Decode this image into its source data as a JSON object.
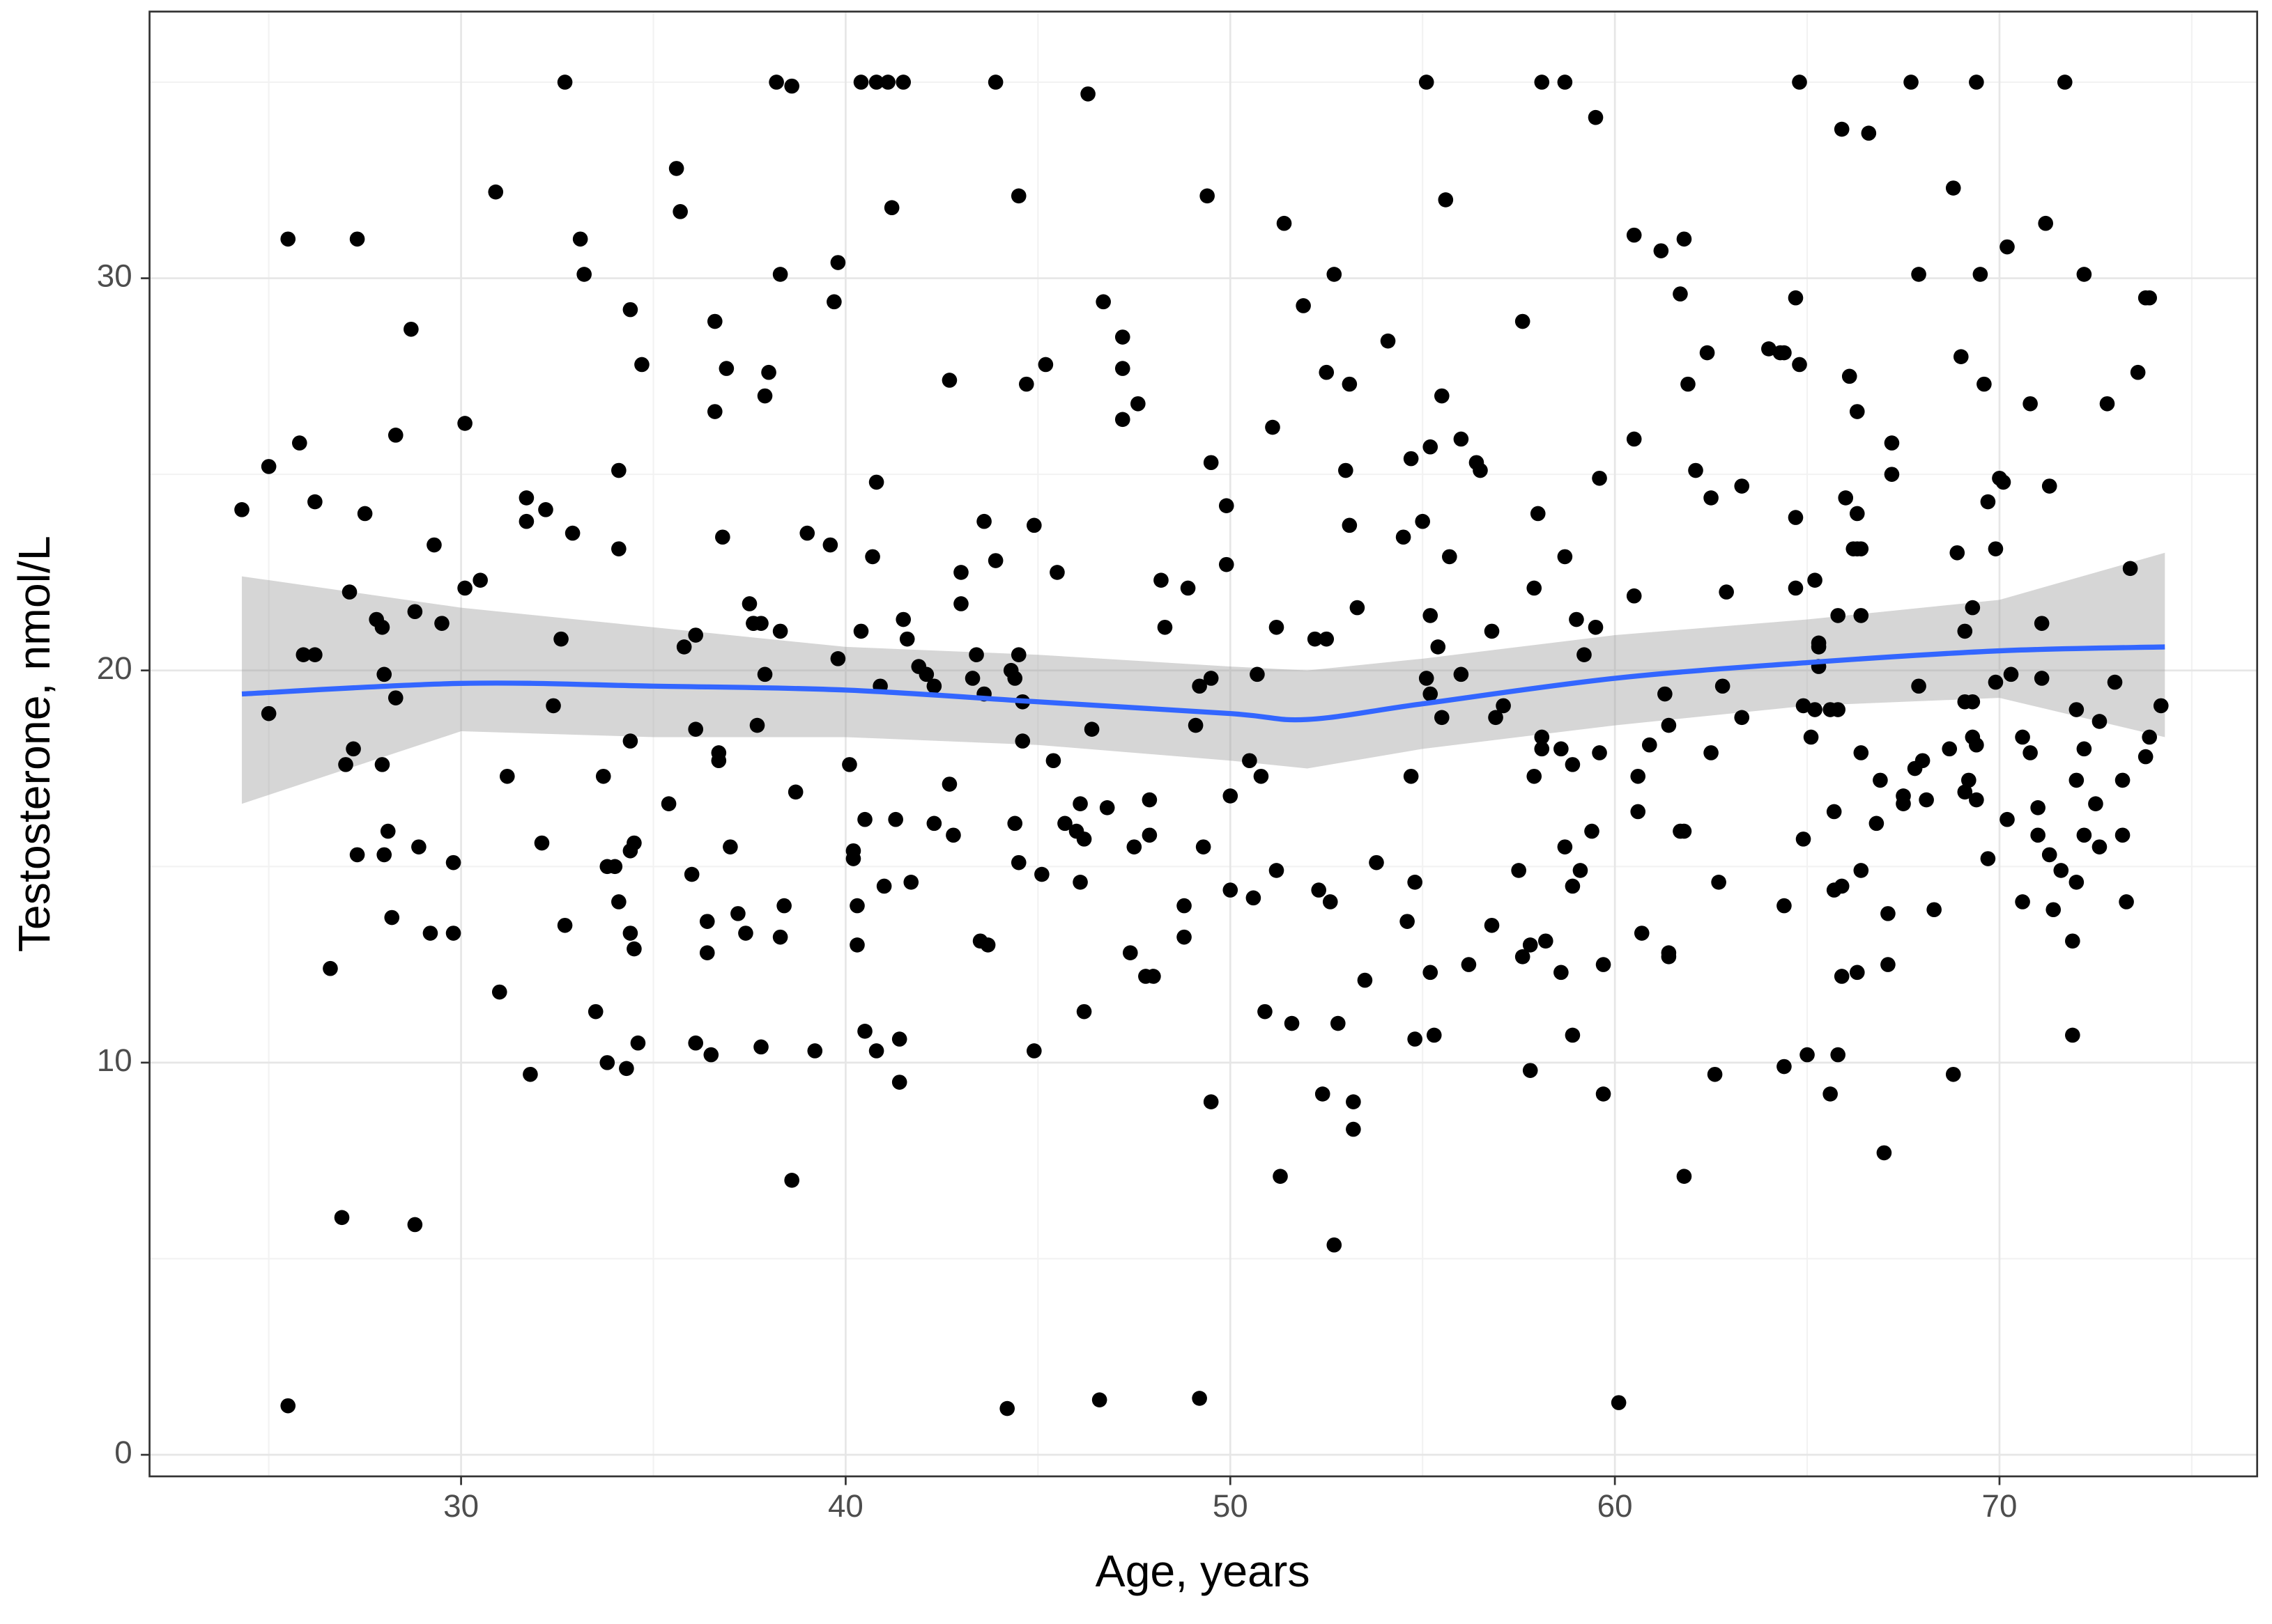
{
  "chart_data": {
    "type": "scatter",
    "x_label": "Age, years",
    "y_label": "Testosterone, nmol/L",
    "xlim": [
      21.9,
      76.7
    ],
    "ylim": [
      -0.55,
      36.8
    ],
    "xticks": [
      30,
      40,
      50,
      60,
      70
    ],
    "yticks": [
      0,
      10,
      20,
      30
    ],
    "x_minor_ticks": [
      25,
      35,
      45,
      55,
      65,
      75
    ],
    "y_minor_ticks": [
      5,
      15,
      25,
      35
    ],
    "grid": true,
    "points": {
      "color": "#000000",
      "x": [
        24.3,
        25.0,
        25.0,
        25.5,
        25.5,
        25.8,
        25.9,
        26.2,
        26.2,
        26.6,
        26.9,
        27.0,
        27.1,
        27.2,
        27.3,
        27.3,
        27.5,
        27.8,
        27.95,
        27.95,
        28.0,
        28.0,
        28.1,
        28.2,
        28.3,
        28.3,
        28.7,
        28.8,
        28.8,
        28.9,
        29.2,
        29.3,
        29.5,
        29.8,
        29.8,
        30.1,
        30.1,
        30.5,
        30.9,
        31.0,
        31.2,
        31.7,
        31.7,
        31.8,
        32.1,
        32.2,
        32.4,
        32.6,
        32.7,
        32.7,
        32.9,
        33.1,
        33.2,
        33.5,
        33.7,
        33.8,
        33.8,
        34.0,
        34.1,
        34.1,
        34.1,
        34.3,
        34.4,
        34.4,
        34.4,
        34.4,
        34.5,
        34.5,
        34.6,
        34.7,
        35.4,
        35.6,
        35.7,
        35.8,
        36.0,
        36.1,
        36.1,
        36.1,
        36.4,
        36.4,
        36.5,
        36.6,
        36.6,
        36.7,
        36.7,
        36.8,
        36.9,
        37.0,
        37.2,
        37.4,
        37.5,
        37.6,
        37.6,
        37.7,
        37.8,
        37.8,
        37.9,
        37.9,
        38.0,
        38.2,
        38.3,
        38.3,
        38.3,
        38.4,
        38.6,
        38.6,
        38.7,
        39.0,
        39.2,
        39.6,
        39.8,
        39.8,
        39.7,
        40.1,
        40.2,
        40.2,
        40.3,
        40.3,
        40.4,
        40.4,
        40.5,
        40.5,
        40.7,
        40.8,
        40.8,
        40.8,
        40.9,
        41.0,
        41.1,
        41.2,
        41.3,
        41.4,
        41.4,
        41.5,
        41.5,
        41.6,
        41.7,
        41.9,
        42.1,
        42.3,
        42.3,
        42.7,
        42.7,
        42.8,
        43.0,
        43.0,
        43.3,
        43.4,
        43.5,
        43.6,
        43.6,
        43.7,
        43.9,
        43.9,
        44.2,
        44.3,
        44.4,
        44.4,
        44.5,
        44.5,
        44.5,
        44.6,
        44.6,
        44.7,
        44.9,
        44.9,
        45.1,
        45.2,
        45.4,
        45.5,
        45.7,
        46.0,
        46.1,
        46.1,
        46.2,
        46.2,
        46.3,
        46.4,
        46.6,
        46.7,
        46.8,
        47.2,
        47.2,
        47.2,
        47.4,
        47.5,
        47.6,
        47.8,
        47.9,
        47.9,
        48.0,
        48.2,
        48.3,
        48.8,
        48.8,
        48.9,
        49.1,
        49.2,
        49.2,
        49.3,
        49.4,
        49.5,
        49.5,
        49.5,
        49.9,
        49.9,
        50.0,
        50.0,
        50.5,
        50.6,
        50.7,
        50.8,
        50.9,
        51.1,
        51.2,
        51.2,
        51.3,
        51.4,
        51.6,
        51.9,
        52.2,
        52.3,
        52.4,
        52.5,
        52.5,
        52.6,
        52.7,
        52.7,
        52.8,
        53.0,
        53.1,
        53.1,
        53.2,
        53.2,
        53.3,
        53.5,
        53.8,
        54.1,
        54.5,
        54.6,
        54.7,
        54.7,
        54.8,
        54.8,
        55.0,
        55.1,
        55.1,
        55.2,
        55.2,
        55.2,
        55.2,
        55.3,
        55.4,
        55.5,
        55.5,
        55.6,
        55.7,
        56.0,
        56.0,
        56.2,
        56.4,
        56.5,
        56.8,
        56.8,
        56.9,
        57.1,
        57.5,
        57.6,
        57.6,
        57.8,
        57.8,
        57.9,
        57.9,
        58.0,
        58.1,
        58.1,
        58.1,
        58.2,
        58.6,
        58.6,
        58.7,
        58.7,
        58.7,
        58.9,
        58.9,
        58.9,
        59.0,
        59.1,
        59.2,
        59.4,
        59.5,
        59.5,
        59.6,
        59.6,
        59.7,
        59.7,
        60.1,
        60.5,
        60.5,
        60.5,
        60.6,
        60.6,
        60.7,
        60.9,
        61.2,
        61.3,
        61.4,
        61.4,
        61.4,
        61.7,
        61.7,
        61.8,
        61.8,
        61.8,
        61.9,
        62.1,
        62.4,
        62.5,
        62.5,
        62.6,
        62.7,
        62.8,
        62.9,
        63.3,
        63.3,
        64.0,
        64.3,
        64.4,
        64.4,
        64.4,
        64.7,
        64.7,
        64.8,
        64.7,
        64.8,
        64.9,
        64.9,
        65.0,
        65.1,
        65.2,
        65.2,
        65.3,
        65.3,
        65.3,
        65.6,
        65.6,
        65.7,
        65.7,
        65.8,
        65.8,
        65.8,
        65.9,
        65.9,
        65.9,
        66.0,
        66.1,
        66.2,
        66.3,
        66.3,
        66.3,
        66.3,
        66.4,
        66.4,
        66.4,
        66.4,
        66.6,
        66.8,
        66.9,
        67.0,
        67.1,
        67.1,
        67.2,
        67.2,
        67.5,
        67.5,
        67.7,
        67.8,
        67.9,
        67.9,
        68.0,
        68.1,
        68.3,
        68.7,
        68.8,
        68.8,
        68.9,
        69.0,
        69.1,
        69.1,
        69.1,
        69.2,
        69.3,
        69.3,
        69.3,
        69.4,
        69.4,
        69.4,
        69.5,
        69.6,
        69.7,
        69.7,
        69.9,
        69.9,
        70.0,
        70.1,
        70.2,
        70.2,
        70.3,
        70.6,
        70.6,
        70.8,
        70.8,
        71.0,
        71.0,
        71.1,
        71.1,
        71.2,
        71.3,
        71.3,
        71.4,
        71.6,
        71.7,
        71.9,
        71.9,
        72.0,
        72.0,
        72.0,
        72.2,
        72.2,
        72.2,
        72.5,
        72.6,
        72.6,
        72.8,
        73.0,
        73.2,
        73.2,
        73.3,
        73.4,
        73.6,
        73.8,
        73.8,
        73.9,
        73.9,
        74.2
      ],
      "y": [
        24.1,
        25.2,
        18.9,
        31.0,
        1.25,
        25.8,
        20.4,
        24.3,
        20.4,
        12.4,
        6.05,
        17.6,
        22.0,
        18.0,
        31.0,
        15.3,
        24.0,
        21.3,
        21.1,
        17.6,
        15.3,
        19.9,
        15.9,
        13.7,
        19.3,
        26.0,
        28.7,
        5.87,
        21.5,
        15.5,
        13.3,
        23.2,
        21.2,
        13.3,
        15.1,
        22.1,
        26.3,
        22.3,
        32.2,
        11.8,
        17.3,
        24.4,
        23.8,
        9.7,
        15.6,
        24.1,
        19.1,
        20.8,
        35,
        13.5,
        23.5,
        31.0,
        30.1,
        11.3,
        17.3,
        10.0,
        15.0,
        15.0,
        23.1,
        25.1,
        14.1,
        9.85,
        18.2,
        29.2,
        15.4,
        13.3,
        15.6,
        12.9,
        10.5,
        27.8,
        16.6,
        32.8,
        31.7,
        20.6,
        14.8,
        10.5,
        20.9,
        18.5,
        13.6,
        12.8,
        10.2,
        26.6,
        28.9,
        17.7,
        17.9,
        23.4,
        27.7,
        15.5,
        13.8,
        13.3,
        21.7,
        21.2,
        21.2,
        18.6,
        21.2,
        10.4,
        19.9,
        27.0,
        27.6,
        35,
        30.1,
        13.2,
        21.0,
        14.0,
        34.9,
        7.0,
        16.9,
        23.5,
        10.3,
        23.2,
        20.3,
        30.4,
        29.4,
        17.6,
        15.4,
        15.2,
        14.0,
        13.0,
        21.0,
        35,
        10.8,
        16.2,
        22.9,
        24.8,
        10.3,
        35,
        19.6,
        14.5,
        35,
        31.8,
        16.2,
        10.6,
        9.5,
        35,
        21.3,
        20.8,
        14.6,
        20.1,
        19.9,
        19.6,
        16.1,
        27.4,
        17.1,
        15.8,
        22.5,
        21.7,
        19.8,
        20.4,
        13.1,
        23.8,
        19.4,
        13.0,
        35,
        22.8,
        1.18,
        20.0,
        16.1,
        19.8,
        15.1,
        32.1,
        20.4,
        18.2,
        19.2,
        27.3,
        23.7,
        10.3,
        14.8,
        27.8,
        17.7,
        22.5,
        16.1,
        15.9,
        16.6,
        14.6,
        11.3,
        15.7,
        34.7,
        18.5,
        1.4,
        29.4,
        16.5,
        28.5,
        27.7,
        26.4,
        12.8,
        15.5,
        26.8,
        12.2,
        16.7,
        15.8,
        12.2,
        22.3,
        21.1,
        13.2,
        14.0,
        22.1,
        18.6,
        1.44,
        19.6,
        15.5,
        32.1,
        9.0,
        19.8,
        25.3,
        22.7,
        24.2,
        14.4,
        16.8,
        17.7,
        14.2,
        19.9,
        17.3,
        11.3,
        26.2,
        14.9,
        21.1,
        7.1,
        31.4,
        11.0,
        29.3,
        20.8,
        14.4,
        9.2,
        27.6,
        20.8,
        14.1,
        5.35,
        30.1,
        11.0,
        25.1,
        27.3,
        23.7,
        9.0,
        8.3,
        21.6,
        12.1,
        15.1,
        28.4,
        23.4,
        13.6,
        25.4,
        17.3,
        14.6,
        10.6,
        23.8,
        35,
        19.8,
        21.4,
        19.4,
        25.7,
        12.3,
        10.7,
        20.6,
        18.8,
        27.0,
        32.0,
        22.9,
        19.9,
        25.9,
        12.5,
        25.3,
        25.1,
        21.0,
        13.5,
        18.8,
        19.1,
        14.9,
        28.9,
        12.7,
        9.8,
        13.0,
        17.3,
        22.1,
        24.0,
        18.0,
        18.3,
        35,
        13.1,
        18.0,
        12.3,
        35,
        15.5,
        22.9,
        17.6,
        14.5,
        10.7,
        21.3,
        14.9,
        20.4,
        15.9,
        34.1,
        21.1,
        17.9,
        24.9,
        9.2,
        12.5,
        1.33,
        31.1,
        21.9,
        25.9,
        17.3,
        16.4,
        13.3,
        18.1,
        30.7,
        19.4,
        18.6,
        12.8,
        12.7,
        29.6,
        15.9,
        31.0,
        15.9,
        7.1,
        27.3,
        25.1,
        28.1,
        17.9,
        24.4,
        9.7,
        14.6,
        19.6,
        22.0,
        24.7,
        18.8,
        28.2,
        28.1,
        28.1,
        9.9,
        14.0,
        23.9,
        22.1,
        35,
        29.5,
        27.8,
        19.1,
        15.7,
        10.2,
        18.3,
        22.3,
        19.0,
        20.6,
        20.1,
        20.7,
        19.0,
        9.2,
        14.4,
        16.4,
        19.0,
        21.4,
        10.2,
        12.2,
        33.8,
        14.5,
        24.4,
        27.5,
        23.1,
        23.1,
        12.3,
        26.6,
        24.0,
        21.4,
        14.9,
        23.1,
        17.9,
        33.7,
        16.1,
        17.2,
        7.7,
        12.5,
        13.8,
        25.0,
        25.8,
        16.8,
        16.6,
        35,
        17.5,
        19.6,
        30.1,
        17.7,
        16.7,
        13.9,
        18.0,
        9.7,
        32.3,
        23.0,
        28.0,
        16.9,
        21.0,
        19.2,
        17.2,
        21.6,
        18.3,
        19.2,
        16.7,
        35,
        18.1,
        30.1,
        27.3,
        24.3,
        15.2,
        19.7,
        23.1,
        24.9,
        24.8,
        16.2,
        30.8,
        19.9,
        14.1,
        18.3,
        26.8,
        17.9,
        16.5,
        15.8,
        21.2,
        19.8,
        31.4,
        24.7,
        15.3,
        13.9,
        14.9,
        35,
        13.1,
        10.7,
        17.2,
        19.0,
        14.6,
        15.8,
        30.1,
        18.0,
        16.6,
        18.7,
        15.5,
        26.8,
        19.7,
        15.8,
        17.2,
        14.1,
        22.6,
        27.6,
        29.5,
        17.8,
        29.5,
        18.3,
        19.1
      ]
    },
    "smooth": {
      "color": "#3366ff",
      "band_color": "#999999",
      "x": [
        24.3,
        30,
        35,
        40,
        45,
        50,
        52,
        55,
        60,
        65,
        70,
        74.3
      ],
      "y": [
        19.4,
        19.67,
        19.6,
        19.5,
        19.2,
        18.9,
        18.75,
        19.15,
        19.8,
        20.2,
        20.5,
        20.6
      ],
      "lower": [
        16.6,
        18.45,
        18.3,
        18.3,
        18.1,
        17.7,
        17.5,
        18.0,
        18.6,
        19.1,
        19.3,
        18.3
      ],
      "upper": [
        22.4,
        21.6,
        21.1,
        20.6,
        20.4,
        20.1,
        20.0,
        20.3,
        20.9,
        21.3,
        21.8,
        23.0
      ]
    }
  }
}
